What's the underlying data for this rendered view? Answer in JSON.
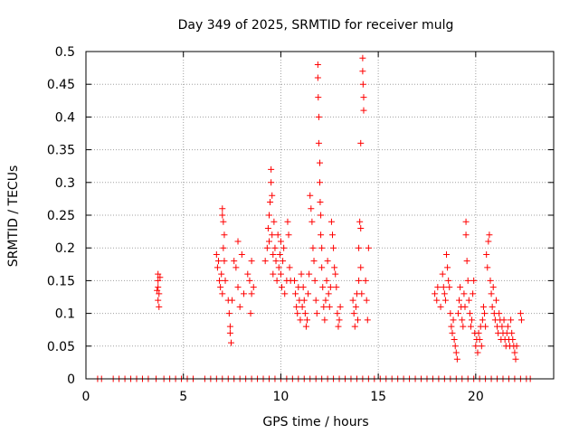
{
  "chart_data": {
    "type": "scatter",
    "title": "Day 349 of 2025, SRMTID for receiver mulg",
    "xlabel": "GPS time / hours",
    "ylabel": "SRMTID / TECUs",
    "xlim": [
      0,
      24
    ],
    "ylim": [
      0,
      0.5
    ],
    "grid": true,
    "marker": "+",
    "marker_color": "#ff0000",
    "grid_color": "#a0a0a0",
    "axis_color": "#000000",
    "xticks": [
      {
        "value": 0,
        "label": "0"
      },
      {
        "value": 5,
        "label": "5"
      },
      {
        "value": 10,
        "label": "10"
      },
      {
        "value": 15,
        "label": "15"
      },
      {
        "value": 20,
        "label": "20"
      }
    ],
    "yticks": [
      {
        "value": 0,
        "label": "0"
      },
      {
        "value": 0.05,
        "label": "0.05"
      },
      {
        "value": 0.1,
        "label": "0.1"
      },
      {
        "value": 0.15,
        "label": "0.15"
      },
      {
        "value": 0.2,
        "label": "0.2"
      },
      {
        "value": 0.25,
        "label": "0.25"
      },
      {
        "value": 0.3,
        "label": "0.3"
      },
      {
        "value": 0.35,
        "label": "0.35"
      },
      {
        "value": 0.4,
        "label": "0.4"
      },
      {
        "value": 0.45,
        "label": "0.45"
      },
      {
        "value": 0.5,
        "label": "0.5"
      }
    ],
    "series": [
      {
        "name": "SRMTID",
        "points": [
          [
            0.6,
            0
          ],
          [
            0.8,
            0
          ],
          [
            1.4,
            0
          ],
          [
            1.7,
            0
          ],
          [
            2.0,
            0
          ],
          [
            2.3,
            0
          ],
          [
            2.6,
            0
          ],
          [
            2.9,
            0
          ],
          [
            3.2,
            0
          ],
          [
            3.6,
            0
          ],
          [
            4.0,
            0
          ],
          [
            4.3,
            0
          ],
          [
            4.6,
            0
          ],
          [
            4.9,
            0
          ],
          [
            5.2,
            0
          ],
          [
            5.5,
            0
          ],
          [
            6.1,
            0
          ],
          [
            6.4,
            0
          ],
          [
            6.7,
            0
          ],
          [
            7.0,
            0
          ],
          [
            7.3,
            0
          ],
          [
            7.6,
            0
          ],
          [
            7.9,
            0
          ],
          [
            8.2,
            0
          ],
          [
            8.5,
            0
          ],
          [
            8.8,
            0
          ],
          [
            9.1,
            0
          ],
          [
            9.4,
            0
          ],
          [
            9.7,
            0
          ],
          [
            10.0,
            0
          ],
          [
            10.3,
            0
          ],
          [
            10.6,
            0
          ],
          [
            10.9,
            0
          ],
          [
            11.2,
            0
          ],
          [
            11.5,
            0
          ],
          [
            11.8,
            0
          ],
          [
            12.1,
            0
          ],
          [
            12.4,
            0
          ],
          [
            12.7,
            0
          ],
          [
            13.0,
            0
          ],
          [
            13.3,
            0
          ],
          [
            13.6,
            0
          ],
          [
            13.9,
            0
          ],
          [
            14.2,
            0
          ],
          [
            14.5,
            0
          ],
          [
            14.8,
            0
          ],
          [
            15.1,
            0
          ],
          [
            15.4,
            0
          ],
          [
            15.7,
            0
          ],
          [
            16.0,
            0
          ],
          [
            16.3,
            0
          ],
          [
            16.6,
            0
          ],
          [
            16.9,
            0
          ],
          [
            17.2,
            0
          ],
          [
            17.5,
            0
          ],
          [
            17.8,
            0
          ],
          [
            18.1,
            0
          ],
          [
            18.4,
            0
          ],
          [
            18.7,
            0
          ],
          [
            19.0,
            0
          ],
          [
            19.3,
            0
          ],
          [
            19.6,
            0
          ],
          [
            19.9,
            0
          ],
          [
            20.2,
            0
          ],
          [
            20.5,
            0
          ],
          [
            20.8,
            0
          ],
          [
            21.1,
            0
          ],
          [
            21.4,
            0
          ],
          [
            21.7,
            0
          ],
          [
            22.0,
            0
          ],
          [
            22.3,
            0
          ],
          [
            22.6,
            0
          ],
          [
            22.8,
            0
          ],
          [
            3.7,
            0.16
          ],
          [
            3.7,
            0.15
          ],
          [
            3.7,
            0.14
          ],
          [
            3.75,
            0.13
          ],
          [
            3.7,
            0.12
          ],
          [
            3.75,
            0.11
          ],
          [
            3.8,
            0.155
          ],
          [
            3.65,
            0.135
          ],
          [
            6.7,
            0.19
          ],
          [
            6.75,
            0.17
          ],
          [
            6.8,
            0.18
          ],
          [
            6.85,
            0.15
          ],
          [
            6.9,
            0.14
          ],
          [
            6.95,
            0.16
          ],
          [
            7.0,
            0.26
          ],
          [
            7.0,
            0.25
          ],
          [
            7.05,
            0.24
          ],
          [
            7.1,
            0.22
          ],
          [
            7.05,
            0.2
          ],
          [
            7.1,
            0.18
          ],
          [
            7.0,
            0.13
          ],
          [
            7.15,
            0.15
          ],
          [
            7.3,
            0.12
          ],
          [
            7.35,
            0.1
          ],
          [
            7.4,
            0.08
          ],
          [
            7.4,
            0.07
          ],
          [
            7.45,
            0.055
          ],
          [
            7.5,
            0.12
          ],
          [
            7.6,
            0.18
          ],
          [
            7.7,
            0.17
          ],
          [
            7.8,
            0.21
          ],
          [
            7.8,
            0.14
          ],
          [
            7.9,
            0.11
          ],
          [
            8.0,
            0.19
          ],
          [
            8.1,
            0.13
          ],
          [
            8.3,
            0.16
          ],
          [
            8.4,
            0.15
          ],
          [
            8.5,
            0.18
          ],
          [
            8.45,
            0.1
          ],
          [
            8.5,
            0.13
          ],
          [
            8.6,
            0.14
          ],
          [
            9.2,
            0.18
          ],
          [
            9.3,
            0.2
          ],
          [
            9.35,
            0.23
          ],
          [
            9.4,
            0.25
          ],
          [
            9.4,
            0.21
          ],
          [
            9.45,
            0.27
          ],
          [
            9.5,
            0.32
          ],
          [
            9.5,
            0.3
          ],
          [
            9.55,
            0.28
          ],
          [
            9.55,
            0.22
          ],
          [
            9.6,
            0.19
          ],
          [
            9.6,
            0.16
          ],
          [
            9.65,
            0.24
          ],
          [
            9.7,
            0.2
          ],
          [
            9.75,
            0.18
          ],
          [
            9.8,
            0.15
          ],
          [
            9.85,
            0.22
          ],
          [
            9.9,
            0.17
          ],
          [
            9.95,
            0.19
          ],
          [
            10.0,
            0.16
          ],
          [
            10.0,
            0.21
          ],
          [
            10.05,
            0.14
          ],
          [
            10.1,
            0.18
          ],
          [
            10.15,
            0.2
          ],
          [
            10.2,
            0.13
          ],
          [
            10.3,
            0.15
          ],
          [
            10.35,
            0.24
          ],
          [
            10.4,
            0.22
          ],
          [
            10.45,
            0.17
          ],
          [
            10.5,
            0.15
          ],
          [
            10.7,
            0.15
          ],
          [
            10.75,
            0.13
          ],
          [
            10.8,
            0.11
          ],
          [
            10.85,
            0.1
          ],
          [
            10.9,
            0.14
          ],
          [
            10.95,
            0.12
          ],
          [
            11.0,
            0.09
          ],
          [
            11.05,
            0.16
          ],
          [
            11.1,
            0.11
          ],
          [
            11.15,
            0.14
          ],
          [
            11.2,
            0.12
          ],
          [
            11.25,
            0.1
          ],
          [
            11.3,
            0.08
          ],
          [
            11.35,
            0.09
          ],
          [
            11.4,
            0.13
          ],
          [
            11.45,
            0.16
          ],
          [
            11.5,
            0.28
          ],
          [
            11.55,
            0.26
          ],
          [
            11.6,
            0.24
          ],
          [
            11.65,
            0.2
          ],
          [
            11.7,
            0.18
          ],
          [
            11.75,
            0.15
          ],
          [
            11.8,
            0.12
          ],
          [
            11.85,
            0.1
          ],
          [
            11.9,
            0.48
          ],
          [
            11.9,
            0.46
          ],
          [
            11.92,
            0.43
          ],
          [
            11.95,
            0.4
          ],
          [
            11.95,
            0.36
          ],
          [
            12.0,
            0.33
          ],
          [
            12.0,
            0.3
          ],
          [
            12.02,
            0.27
          ],
          [
            12.05,
            0.25
          ],
          [
            12.05,
            0.22
          ],
          [
            12.1,
            0.2
          ],
          [
            12.1,
            0.17
          ],
          [
            12.15,
            0.14
          ],
          [
            12.2,
            0.11
          ],
          [
            12.25,
            0.09
          ],
          [
            12.3,
            0.12
          ],
          [
            12.35,
            0.15
          ],
          [
            12.4,
            0.18
          ],
          [
            12.45,
            0.13
          ],
          [
            12.5,
            0.11
          ],
          [
            12.55,
            0.14
          ],
          [
            12.6,
            0.24
          ],
          [
            12.65,
            0.22
          ],
          [
            12.7,
            0.2
          ],
          [
            12.75,
            0.17
          ],
          [
            12.8,
            0.16
          ],
          [
            12.85,
            0.14
          ],
          [
            12.9,
            0.1
          ],
          [
            12.95,
            0.08
          ],
          [
            13.0,
            0.09
          ],
          [
            13.05,
            0.11
          ],
          [
            13.7,
            0.12
          ],
          [
            13.75,
            0.1
          ],
          [
            13.8,
            0.08
          ],
          [
            13.85,
            0.11
          ],
          [
            13.9,
            0.13
          ],
          [
            13.95,
            0.09
          ],
          [
            14.0,
            0.15
          ],
          [
            14.0,
            0.2
          ],
          [
            14.05,
            0.24
          ],
          [
            14.1,
            0.23
          ],
          [
            14.1,
            0.17
          ],
          [
            14.15,
            0.13
          ],
          [
            14.2,
            0.49
          ],
          [
            14.2,
            0.47
          ],
          [
            14.22,
            0.45
          ],
          [
            14.25,
            0.43
          ],
          [
            14.25,
            0.41
          ],
          [
            14.1,
            0.36
          ],
          [
            14.35,
            0.15
          ],
          [
            14.4,
            0.12
          ],
          [
            14.45,
            0.09
          ],
          [
            14.5,
            0.2
          ],
          [
            17.9,
            0.13
          ],
          [
            18.0,
            0.12
          ],
          [
            18.05,
            0.14
          ],
          [
            18.2,
            0.11
          ],
          [
            18.3,
            0.16
          ],
          [
            18.35,
            0.14
          ],
          [
            18.4,
            0.13
          ],
          [
            18.45,
            0.12
          ],
          [
            18.5,
            0.19
          ],
          [
            18.55,
            0.17
          ],
          [
            18.6,
            0.15
          ],
          [
            18.65,
            0.14
          ],
          [
            18.7,
            0.1
          ],
          [
            18.75,
            0.08
          ],
          [
            18.8,
            0.07
          ],
          [
            18.85,
            0.09
          ],
          [
            18.9,
            0.06
          ],
          [
            18.95,
            0.05
          ],
          [
            19.0,
            0.04
          ],
          [
            19.05,
            0.03
          ],
          [
            19.1,
            0.1
          ],
          [
            19.15,
            0.12
          ],
          [
            19.2,
            0.14
          ],
          [
            19.25,
            0.11
          ],
          [
            19.3,
            0.09
          ],
          [
            19.35,
            0.08
          ],
          [
            19.4,
            0.13
          ],
          [
            19.45,
            0.11
          ],
          [
            19.5,
            0.24
          ],
          [
            19.5,
            0.22
          ],
          [
            19.55,
            0.18
          ],
          [
            19.6,
            0.15
          ],
          [
            19.65,
            0.12
          ],
          [
            19.7,
            0.1
          ],
          [
            19.75,
            0.08
          ],
          [
            19.8,
            0.09
          ],
          [
            19.85,
            0.13
          ],
          [
            19.9,
            0.15
          ],
          [
            19.95,
            0.07
          ],
          [
            20.0,
            0.05
          ],
          [
            20.05,
            0.06
          ],
          [
            20.1,
            0.04
          ],
          [
            20.15,
            0.07
          ],
          [
            20.2,
            0.06
          ],
          [
            20.25,
            0.08
          ],
          [
            20.3,
            0.05
          ],
          [
            20.35,
            0.09
          ],
          [
            20.4,
            0.11
          ],
          [
            20.45,
            0.1
          ],
          [
            20.5,
            0.08
          ],
          [
            20.55,
            0.19
          ],
          [
            20.6,
            0.17
          ],
          [
            20.65,
            0.21
          ],
          [
            20.7,
            0.22
          ],
          [
            20.75,
            0.15
          ],
          [
            20.8,
            0.13
          ],
          [
            20.85,
            0.11
          ],
          [
            20.9,
            0.14
          ],
          [
            20.95,
            0.1
          ],
          [
            21.0,
            0.09
          ],
          [
            21.05,
            0.12
          ],
          [
            21.1,
            0.08
          ],
          [
            21.15,
            0.07
          ],
          [
            21.2,
            0.1
          ],
          [
            21.25,
            0.09
          ],
          [
            21.3,
            0.06
          ],
          [
            21.35,
            0.08
          ],
          [
            21.4,
            0.07
          ],
          [
            21.45,
            0.09
          ],
          [
            21.5,
            0.06
          ],
          [
            21.55,
            0.05
          ],
          [
            21.6,
            0.07
          ],
          [
            21.65,
            0.08
          ],
          [
            21.7,
            0.06
          ],
          [
            21.75,
            0.05
          ],
          [
            21.8,
            0.09
          ],
          [
            21.85,
            0.07
          ],
          [
            21.9,
            0.06
          ],
          [
            21.95,
            0.05
          ],
          [
            22.0,
            0.04
          ],
          [
            22.05,
            0.03
          ],
          [
            22.1,
            0.05
          ],
          [
            22.3,
            0.1
          ],
          [
            22.35,
            0.09
          ]
        ]
      }
    ]
  }
}
